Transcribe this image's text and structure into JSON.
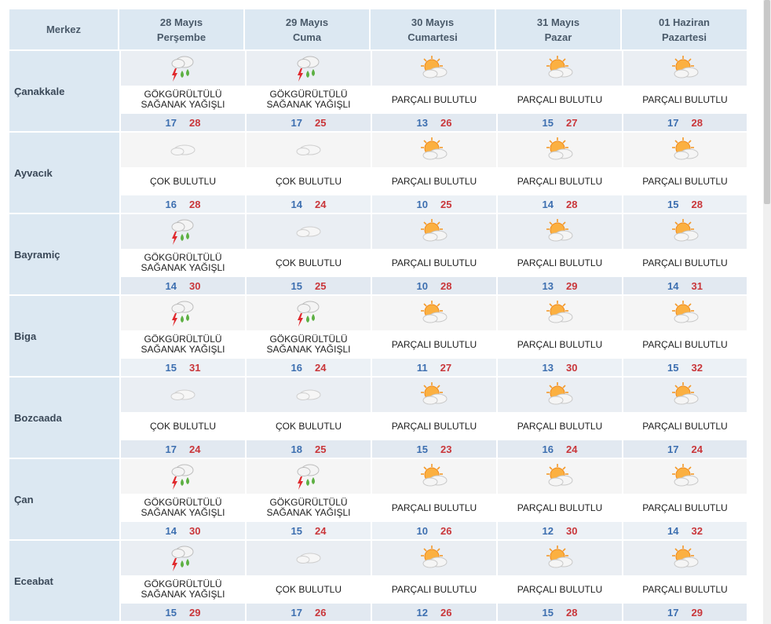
{
  "header": {
    "city_label": "Merkez",
    "days": [
      {
        "date": "28 Mayıs",
        "weekday": "Perşembe"
      },
      {
        "date": "29 Mayıs",
        "weekday": "Cuma"
      },
      {
        "date": "30 Mayıs",
        "weekday": "Cumartesi"
      },
      {
        "date": "31 Mayıs",
        "weekday": "Pazar"
      },
      {
        "date": "01 Haziran",
        "weekday": "Pazartesi"
      }
    ]
  },
  "rows": [
    {
      "city": "Çanakkale",
      "days": [
        {
          "icon": "thunderstorm-icon",
          "desc": "GÖKGÜRÜLTÜLÜ SAĞANAK YAĞIŞLI",
          "min": "17",
          "max": "28"
        },
        {
          "icon": "thunderstorm-icon",
          "desc": "GÖKGÜRÜLTÜLÜ SAĞANAK YAĞIŞLI",
          "min": "17",
          "max": "25"
        },
        {
          "icon": "partly-cloudy-icon",
          "desc": "PARÇALI BULUTLU",
          "min": "13",
          "max": "26"
        },
        {
          "icon": "partly-cloudy-icon",
          "desc": "PARÇALI BULUTLU",
          "min": "15",
          "max": "27"
        },
        {
          "icon": "partly-cloudy-icon",
          "desc": "PARÇALI BULUTLU",
          "min": "17",
          "max": "28"
        }
      ]
    },
    {
      "city": "Ayvacık",
      "days": [
        {
          "icon": "cloudy-icon",
          "desc": "ÇOK BULUTLU",
          "min": "16",
          "max": "28"
        },
        {
          "icon": "cloudy-icon",
          "desc": "ÇOK BULUTLU",
          "min": "14",
          "max": "24"
        },
        {
          "icon": "partly-cloudy-icon",
          "desc": "PARÇALI BULUTLU",
          "min": "10",
          "max": "25"
        },
        {
          "icon": "partly-cloudy-icon",
          "desc": "PARÇALI BULUTLU",
          "min": "14",
          "max": "28"
        },
        {
          "icon": "partly-cloudy-icon",
          "desc": "PARÇALI BULUTLU",
          "min": "15",
          "max": "28"
        }
      ]
    },
    {
      "city": "Bayramiç",
      "days": [
        {
          "icon": "thunderstorm-icon",
          "desc": "GÖKGÜRÜLTÜLÜ SAĞANAK YAĞIŞLI",
          "min": "14",
          "max": "30"
        },
        {
          "icon": "cloudy-icon",
          "desc": "ÇOK BULUTLU",
          "min": "15",
          "max": "25"
        },
        {
          "icon": "partly-cloudy-icon",
          "desc": "PARÇALI BULUTLU",
          "min": "10",
          "max": "28"
        },
        {
          "icon": "partly-cloudy-icon",
          "desc": "PARÇALI BULUTLU",
          "min": "13",
          "max": "29"
        },
        {
          "icon": "partly-cloudy-icon",
          "desc": "PARÇALI BULUTLU",
          "min": "14",
          "max": "31"
        }
      ]
    },
    {
      "city": "Biga",
      "days": [
        {
          "icon": "thunderstorm-icon",
          "desc": "GÖKGÜRÜLTÜLÜ SAĞANAK YAĞIŞLI",
          "min": "15",
          "max": "31"
        },
        {
          "icon": "thunderstorm-icon",
          "desc": "GÖKGÜRÜLTÜLÜ SAĞANAK YAĞIŞLI",
          "min": "16",
          "max": "24"
        },
        {
          "icon": "partly-cloudy-icon",
          "desc": "PARÇALI BULUTLU",
          "min": "11",
          "max": "27"
        },
        {
          "icon": "partly-cloudy-icon",
          "desc": "PARÇALI BULUTLU",
          "min": "13",
          "max": "30"
        },
        {
          "icon": "partly-cloudy-icon",
          "desc": "PARÇALI BULUTLU",
          "min": "15",
          "max": "32"
        }
      ]
    },
    {
      "city": "Bozcaada",
      "days": [
        {
          "icon": "cloudy-icon",
          "desc": "ÇOK BULUTLU",
          "min": "17",
          "max": "24"
        },
        {
          "icon": "cloudy-icon",
          "desc": "ÇOK BULUTLU",
          "min": "18",
          "max": "25"
        },
        {
          "icon": "partly-cloudy-icon",
          "desc": "PARÇALI BULUTLU",
          "min": "15",
          "max": "23"
        },
        {
          "icon": "partly-cloudy-icon",
          "desc": "PARÇALI BULUTLU",
          "min": "16",
          "max": "24"
        },
        {
          "icon": "partly-cloudy-icon",
          "desc": "PARÇALI BULUTLU",
          "min": "17",
          "max": "24"
        }
      ]
    },
    {
      "city": "Çan",
      "days": [
        {
          "icon": "thunderstorm-icon",
          "desc": "GÖKGÜRÜLTÜLÜ SAĞANAK YAĞIŞLI",
          "min": "14",
          "max": "30"
        },
        {
          "icon": "thunderstorm-icon",
          "desc": "GÖKGÜRÜLTÜLÜ SAĞANAK YAĞIŞLI",
          "min": "15",
          "max": "24"
        },
        {
          "icon": "partly-cloudy-icon",
          "desc": "PARÇALI BULUTLU",
          "min": "10",
          "max": "26"
        },
        {
          "icon": "partly-cloudy-icon",
          "desc": "PARÇALI BULUTLU",
          "min": "12",
          "max": "30"
        },
        {
          "icon": "partly-cloudy-icon",
          "desc": "PARÇALI BULUTLU",
          "min": "14",
          "max": "32"
        }
      ]
    },
    {
      "city": "Eceabat",
      "days": [
        {
          "icon": "thunderstorm-icon",
          "desc": "GÖKGÜRÜLTÜLÜ SAĞANAK YAĞIŞLI",
          "min": "15",
          "max": "29"
        },
        {
          "icon": "cloudy-icon",
          "desc": "ÇOK BULUTLU",
          "min": "17",
          "max": "26"
        },
        {
          "icon": "partly-cloudy-icon",
          "desc": "PARÇALI BULUTLU",
          "min": "12",
          "max": "26"
        },
        {
          "icon": "partly-cloudy-icon",
          "desc": "PARÇALI BULUTLU",
          "min": "15",
          "max": "28"
        },
        {
          "icon": "partly-cloudy-icon",
          "desc": "PARÇALI BULUTLU",
          "min": "17",
          "max": "29"
        }
      ]
    }
  ],
  "colors": {
    "header_bg": "#dce8f2",
    "min_temp": "#3d6fb0",
    "max_temp": "#c9363a"
  }
}
